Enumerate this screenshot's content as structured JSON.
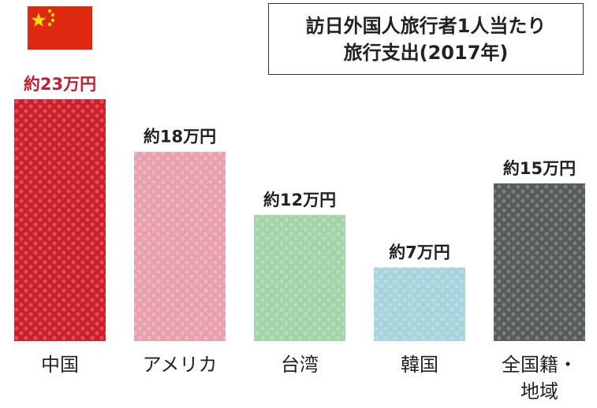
{
  "title_lines": [
    "訪日外国人旅行者1人当たり",
    "旅行支出(2017年)"
  ],
  "flag": {
    "name": "china-flag-icon",
    "colors": {
      "field": "#de2910",
      "stars": "#ffde00"
    }
  },
  "chart_data": {
    "type": "bar",
    "title": "訪日外国人旅行者1人当たり旅行支出(2017年)",
    "categories": [
      "中国",
      "アメリカ",
      "台湾",
      "韓国",
      "全国籍・地域"
    ],
    "category_lines": [
      [
        "中国"
      ],
      [
        "アメリカ"
      ],
      [
        "台湾"
      ],
      [
        "韓国"
      ],
      [
        "全国籍・",
        "地域"
      ]
    ],
    "values": [
      23,
      18,
      12,
      7,
      15
    ],
    "unit": "万円",
    "data_labels": [
      "約23万円",
      "約18万円",
      "約12万円",
      "約7万円",
      "約15万円"
    ],
    "colors": [
      "#cc1f2b",
      "#e8a0ad",
      "#a2d4a8",
      "#a6d4dc",
      "#565b5b"
    ],
    "label_colors": [
      "#c41e2c",
      "#222222",
      "#222222",
      "#222222",
      "#222222"
    ],
    "ylim": [
      0,
      23
    ],
    "grid": false,
    "legend": "none"
  }
}
